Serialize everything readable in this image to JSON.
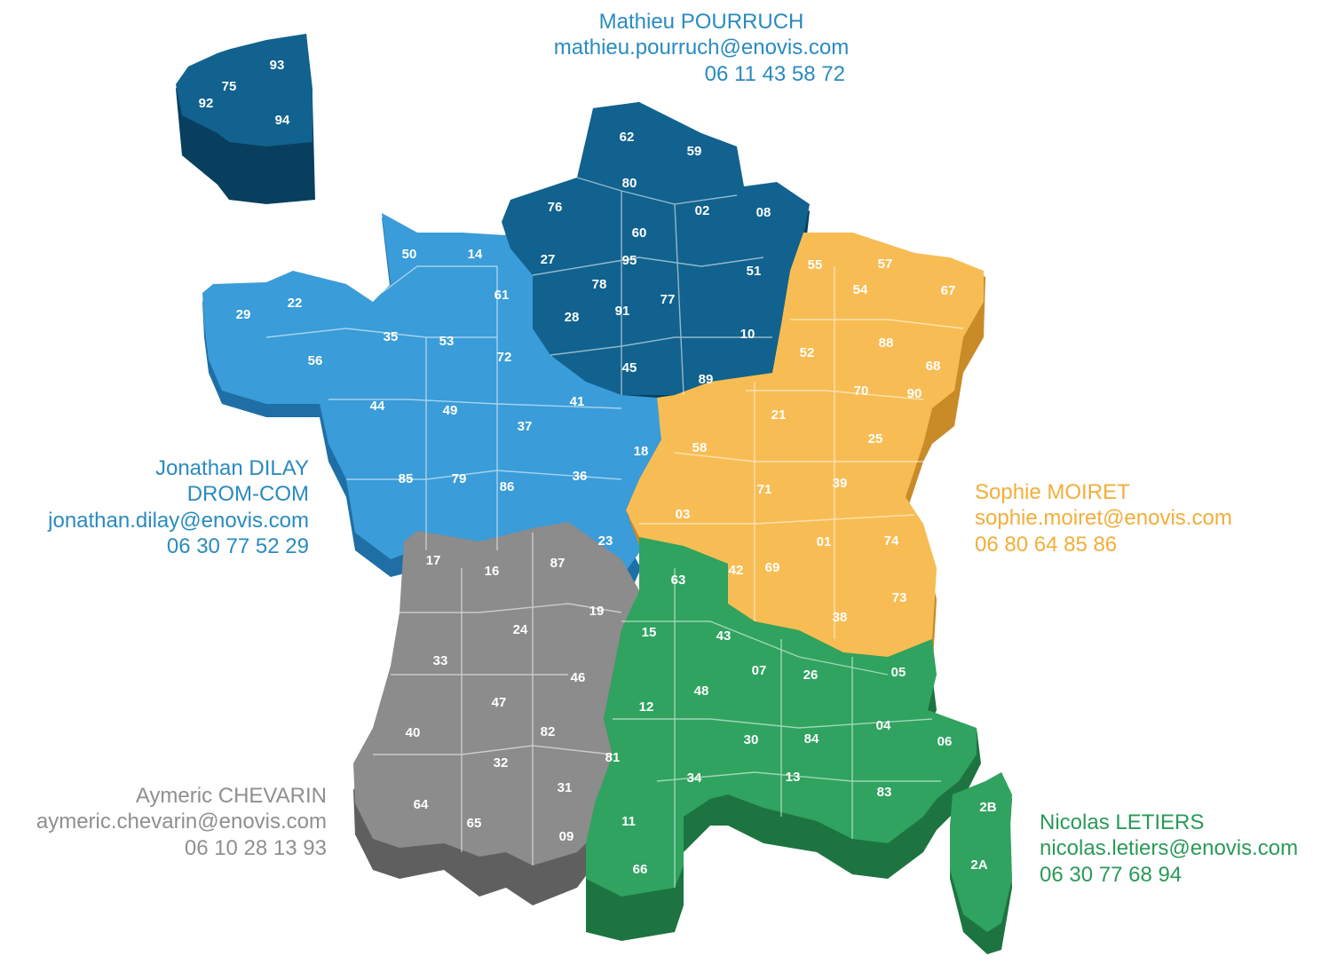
{
  "regions": [
    {
      "id": "navy",
      "colors": {
        "top": "#11628e",
        "side": "#083f5f",
        "stroke": "#0b4f74",
        "text": "#2a8bc0"
      },
      "contact": {
        "name": "Mathieu POURRUCH",
        "email": "mathieu.pourruch@enovis.com",
        "phone": "06 11 43 58 72"
      },
      "departments": [
        "62",
        "59",
        "80",
        "76",
        "02",
        "08",
        "60",
        "27",
        "95",
        "78",
        "91",
        "28",
        "77",
        "51",
        "45",
        "10",
        "89"
      ]
    },
    {
      "id": "blue",
      "colors": {
        "top": "#3a9cd9",
        "side": "#1f6fa6",
        "stroke": "#2a86c0",
        "text": "#2a8bc0"
      },
      "contact": {
        "name": "Jonathan DILAY",
        "extra": "DROM-COM",
        "email": "jonathan.dilay@enovis.com",
        "phone": "06 30 77 52 29"
      },
      "departments": [
        "50",
        "14",
        "61",
        "29",
        "22",
        "35",
        "53",
        "72",
        "56",
        "44",
        "49",
        "41",
        "37",
        "18",
        "85",
        "79",
        "86",
        "36",
        "23"
      ]
    },
    {
      "id": "yellow",
      "colors": {
        "top": "#f7bd54",
        "side": "#c98a28",
        "stroke": "#e0a43c",
        "text": "#f2ae3a"
      },
      "contact": {
        "name": "Sophie MOIRET",
        "email": "sophie.moiret@enovis.com",
        "phone": "06 80 64 85 86"
      },
      "departments": [
        "55",
        "57",
        "67",
        "54",
        "52",
        "88",
        "68",
        "90",
        "21",
        "70",
        "25",
        "58",
        "71",
        "39",
        "03",
        "01",
        "74",
        "42",
        "69",
        "38",
        "73"
      ]
    },
    {
      "id": "gray",
      "colors": {
        "top": "#8c8c8c",
        "side": "#5f5f5f",
        "stroke": "#777777",
        "text": "#8f8f8f"
      },
      "contact": {
        "name": "Aymeric CHEVARIN",
        "email": "aymeric.chevarin@enovis.com",
        "phone": "06 10 28 13 93"
      },
      "departments": [
        "17",
        "16",
        "87",
        "19",
        "24",
        "33",
        "46",
        "47",
        "40",
        "82",
        "32",
        "81",
        "31",
        "64",
        "65",
        "09"
      ]
    },
    {
      "id": "green",
      "colors": {
        "top": "#2fa35f",
        "side": "#1d7441",
        "stroke": "#26894f",
        "text": "#2a9a58"
      },
      "contact": {
        "name": "Nicolas LETIERS",
        "email": "nicolas.letiers@enovis.com",
        "phone": "06 30 77 68 94"
      },
      "departments": [
        "63",
        "15",
        "43",
        "07",
        "26",
        "05",
        "12",
        "48",
        "04",
        "06",
        "30",
        "84",
        "34",
        "13",
        "83",
        "11",
        "66",
        "2B",
        "2A"
      ]
    }
  ],
  "inset": {
    "region": "navy",
    "departments": [
      "93",
      "75",
      "92",
      "94"
    ]
  }
}
